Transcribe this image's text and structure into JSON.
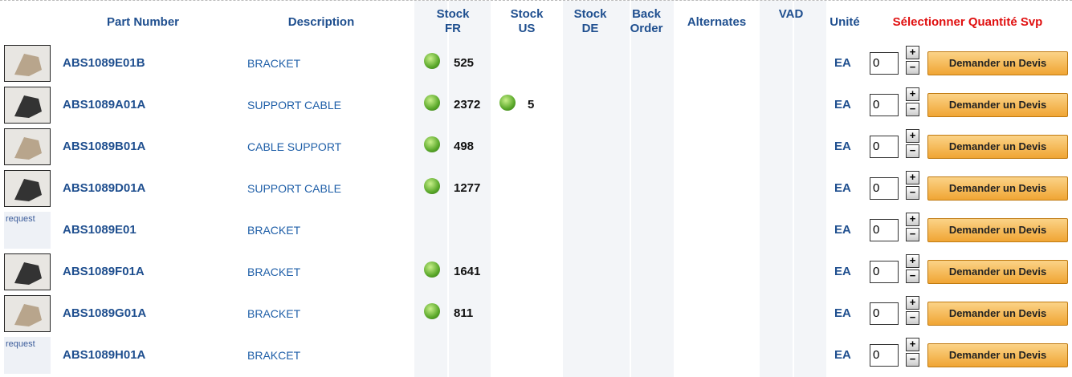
{
  "header": {
    "columns": [
      "Part Number",
      "Description",
      "Stock FR",
      "Stock US",
      "Stock DE",
      "Back Order",
      "Alternates",
      "VAD",
      "Unité",
      "Sélectionner Quantité Svp"
    ]
  },
  "rows": [
    {
      "part": "ABS1089E01B",
      "description": "BRACKET",
      "stock_fr": "525",
      "unit": "EA",
      "qty": "0",
      "button": "Demander un Devis"
    },
    {
      "part": "ABS1089A01A",
      "description": "SUPPORT CABLE",
      "stock_fr": "2372",
      "stock_us": "5",
      "unit": "EA",
      "qty": "0",
      "button": "Demander un Devis"
    },
    {
      "part": "ABS1089B01A",
      "description": "CABLE SUPPORT",
      "stock_fr": "498",
      "unit": "EA",
      "qty": "0",
      "button": "Demander un Devis"
    },
    {
      "part": "ABS1089D01A",
      "description": "SUPPORT CABLE",
      "stock_fr": "1277",
      "unit": "EA",
      "qty": "0",
      "button": "Demander un Devis"
    },
    {
      "image_label": "request",
      "part": "ABS1089E01",
      "description": "BRACKET",
      "unit": "EA",
      "qty": "0",
      "button": "Demander un Devis"
    },
    {
      "part": "ABS1089F01A",
      "description": "BRACKET",
      "stock_fr": "1641",
      "unit": "EA",
      "qty": "0",
      "button": "Demander un Devis"
    },
    {
      "part": "ABS1089G01A",
      "description": "BRACKET",
      "stock_fr": "811",
      "unit": "EA",
      "qty": "0",
      "button": "Demander un Devis"
    },
    {
      "image_label": "request",
      "part": "ABS1089H01A",
      "description": "BRAKCET",
      "unit": "EA",
      "qty": "0",
      "button": "Demander un Devis"
    }
  ]
}
